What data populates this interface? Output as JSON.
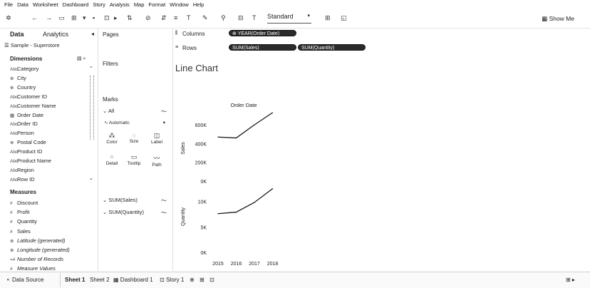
{
  "menubar": {
    "items": [
      "File",
      "Data",
      "Worksheet",
      "Dashboard",
      "Story",
      "Analysis",
      "Map",
      "Format",
      "Window",
      "Help"
    ]
  },
  "toolbar": {
    "view_select_value": "Standard",
    "show_me_label": "Show Me"
  },
  "data_pane": {
    "tab_data": "Data",
    "tab_analytics": "Analytics",
    "datasource": "Sample - Superstore",
    "dimensions_title": "Dimensions",
    "dimensions": [
      {
        "icon": "Abc",
        "label": "Category"
      },
      {
        "icon": "⊕",
        "label": "City"
      },
      {
        "icon": "⊕",
        "label": "Country"
      },
      {
        "icon": "Abc",
        "label": "Customer ID"
      },
      {
        "icon": "Abc",
        "label": "Customer Name"
      },
      {
        "icon": "▦",
        "label": "Order Date"
      },
      {
        "icon": "Abc",
        "label": "Order ID"
      },
      {
        "icon": "Abc",
        "label": "Person"
      },
      {
        "icon": "⊕",
        "label": "Postal Code"
      },
      {
        "icon": "Abc",
        "label": "Product ID"
      },
      {
        "icon": "Abc",
        "label": "Product Name"
      },
      {
        "icon": "Abc",
        "label": "Region"
      },
      {
        "icon": "Abc",
        "label": "Row ID"
      }
    ],
    "measures_title": "Measures",
    "measures": [
      {
        "icon": "#",
        "label": "Discount",
        "italic": false
      },
      {
        "icon": "#",
        "label": "Profit",
        "italic": false
      },
      {
        "icon": "#",
        "label": "Quantity",
        "italic": false
      },
      {
        "icon": "#",
        "label": "Sales",
        "italic": false
      },
      {
        "icon": "⊕",
        "label": "Latitude (generated)",
        "italic": true
      },
      {
        "icon": "⊕",
        "label": "Longitude (generated)",
        "italic": true
      },
      {
        "icon": "=#",
        "label": "Number of Records",
        "italic": true
      },
      {
        "icon": "#",
        "label": "Measure Values",
        "italic": true
      }
    ]
  },
  "cards": {
    "pages": "Pages",
    "filters": "Filters",
    "marks": "Marks",
    "marks_all": "All",
    "mark_type": "Automatic",
    "mark_buttons": [
      "Color",
      "Size",
      "Label",
      "Detail",
      "Tooltip",
      "Path"
    ],
    "measure_sales": "SUM(Sales)",
    "measure_quantity": "SUM(Quantity)"
  },
  "shelves": {
    "columns_label": "Columns",
    "rows_label": "Rows",
    "columns_pill": "YEAR(Order Date)",
    "rows_pills": [
      "SUM(Sales)",
      "SUM(Quantity)"
    ]
  },
  "view": {
    "title": "Line Chart"
  },
  "chart_data": {
    "type": "line",
    "header": "Order Date",
    "x": [
      "2015",
      "2016",
      "2017",
      "2018"
    ],
    "panes": [
      {
        "ylabel": "Sales",
        "ylim": [
          0,
          700000
        ],
        "ticks": [
          "600K",
          "400K",
          "200K",
          "0K"
        ],
        "tick_values": [
          600000,
          400000,
          200000,
          0
        ],
        "values": [
          470000,
          460000,
          600000,
          730000
        ]
      },
      {
        "ylabel": "Quantity",
        "ylim": [
          0,
          14000
        ],
        "ticks": [
          "10K",
          "5K",
          "0K"
        ],
        "tick_values": [
          10000,
          5000,
          0
        ],
        "values": [
          7600,
          7900,
          9800,
          12500
        ]
      }
    ],
    "colors": {
      "line": "#1a1a1a"
    }
  },
  "tabs": {
    "data_source": "Data Source",
    "sheets": [
      "Sheet 1",
      "Sheet 2"
    ],
    "dashboard": "Dashboard 1",
    "story": "Story 1"
  }
}
